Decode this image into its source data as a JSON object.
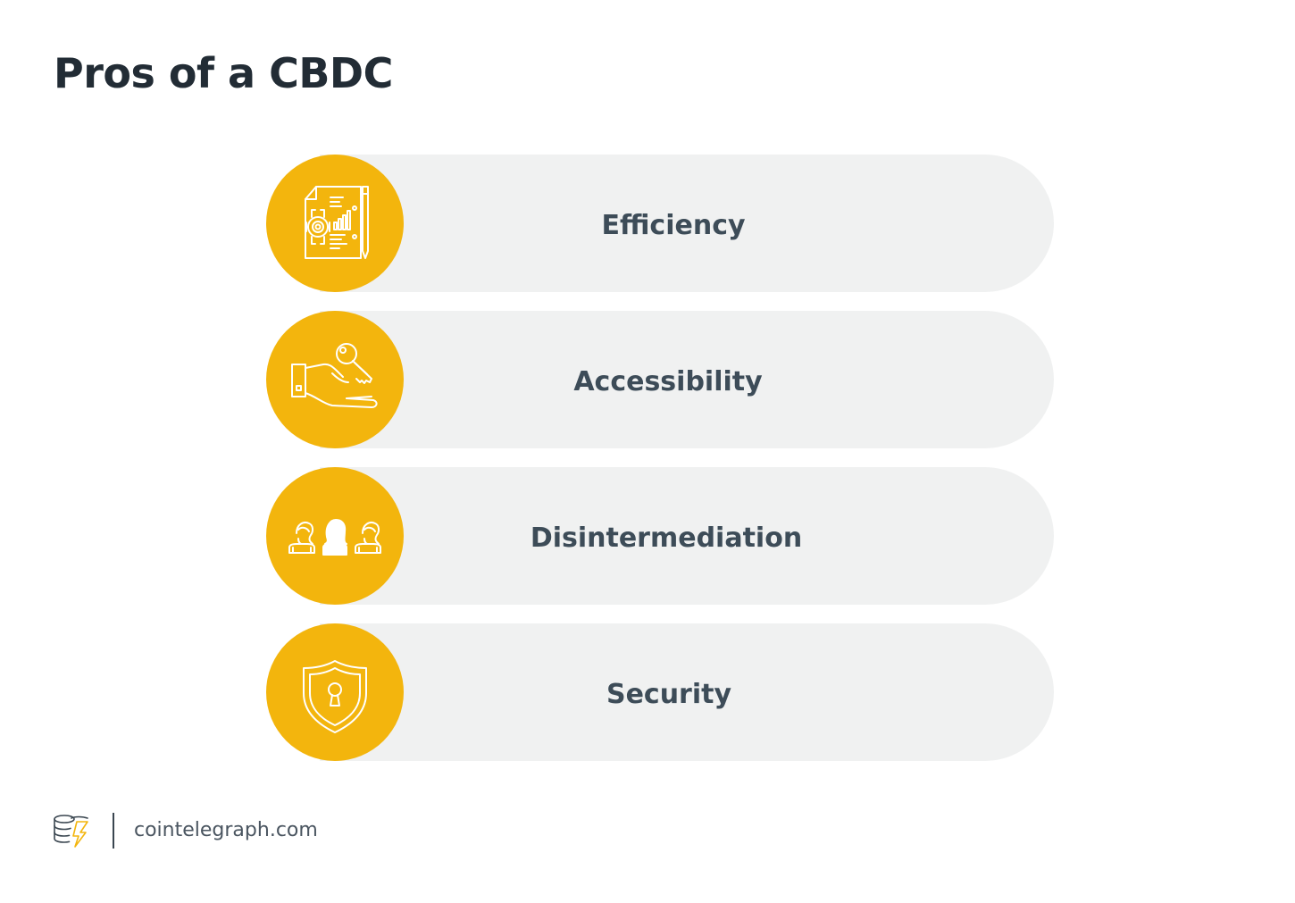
{
  "header": {
    "title": "Pros of a CBDC"
  },
  "pros": [
    {
      "label": "Efficiency",
      "icon": "document-gear-chart-icon"
    },
    {
      "label": "Accessibility",
      "icon": "hand-key-icon"
    },
    {
      "label": "Disintermediation",
      "icon": "people-group-icon"
    },
    {
      "label": "Security",
      "icon": "shield-keyhole-icon"
    }
  ],
  "footer": {
    "logo_icon": "cointelegraph-logo-icon",
    "domain": "cointelegraph.com"
  },
  "colors": {
    "accent": "#f3b50d",
    "bar": "#f0f1f1",
    "title_text": "#222c35",
    "label_text": "#3d4c58"
  }
}
